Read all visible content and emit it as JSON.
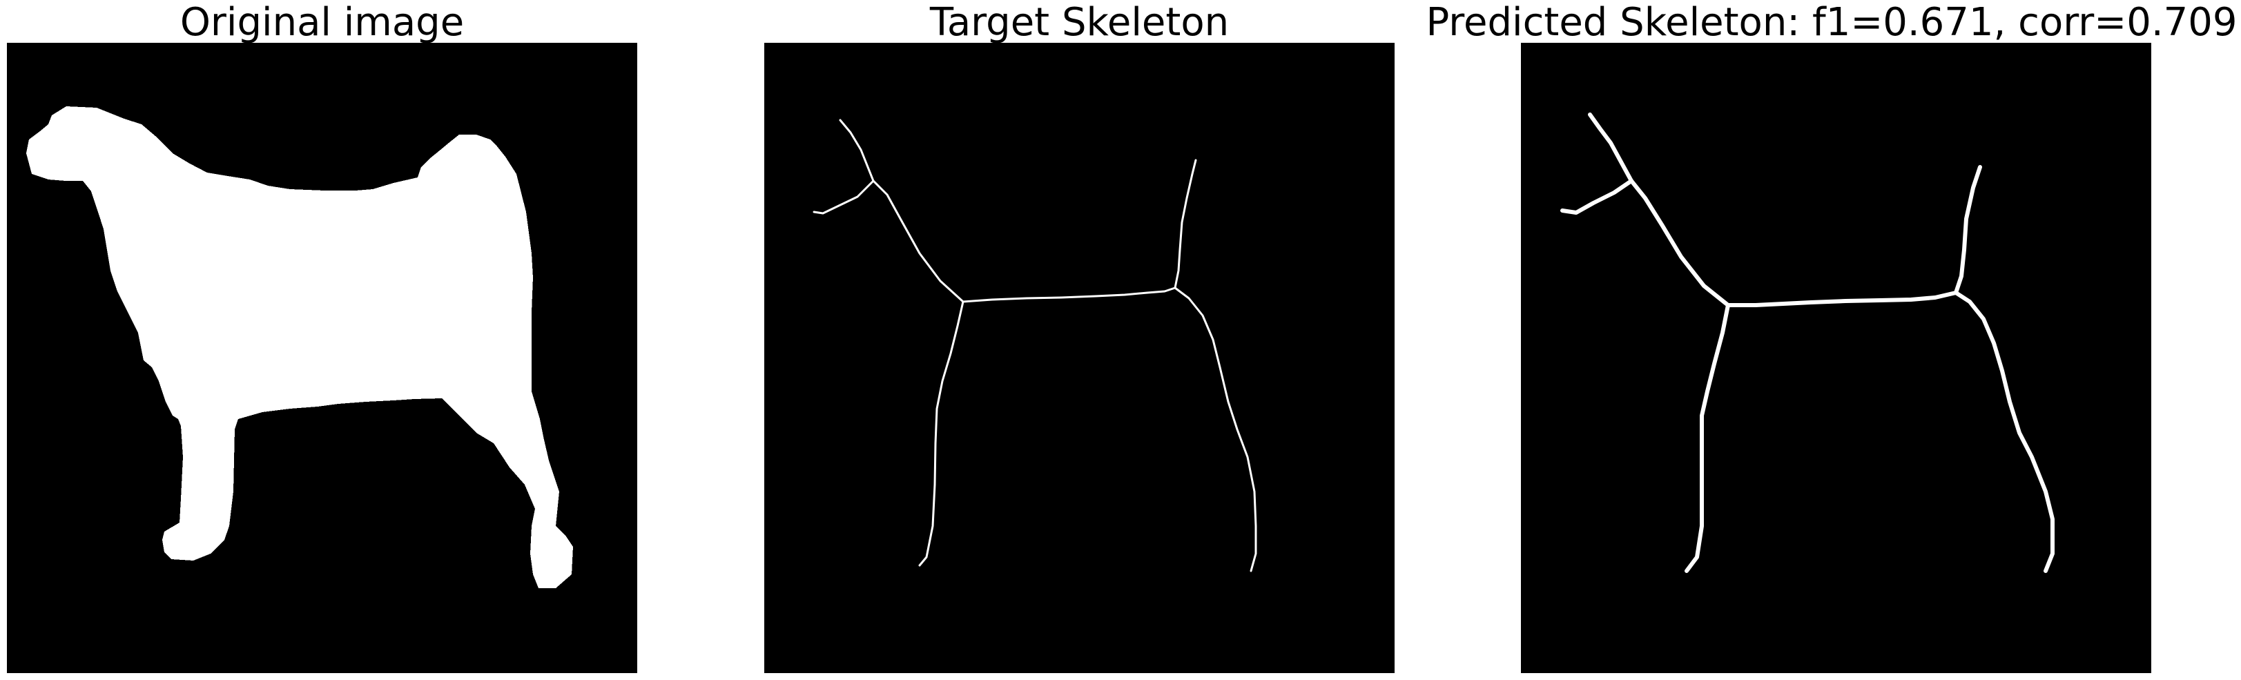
{
  "panels": [
    {
      "title": "Original image"
    },
    {
      "title": "Target Skeleton"
    },
    {
      "title": "Predicted Skeleton: f1=0.671, corr=0.709"
    }
  ],
  "colors": {
    "background": "#ffffff",
    "image_background": "#000000",
    "foreground": "#ffffff"
  }
}
